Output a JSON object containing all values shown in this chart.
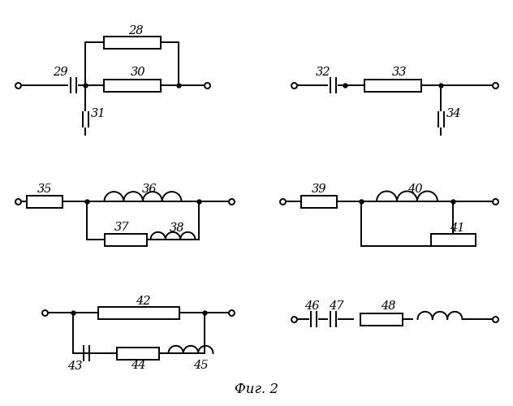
{
  "title": "Фиг. 2",
  "bg_color": "#ffffff",
  "line_color": "#000000",
  "fig_width": 6.32,
  "fig_height": 5.0
}
